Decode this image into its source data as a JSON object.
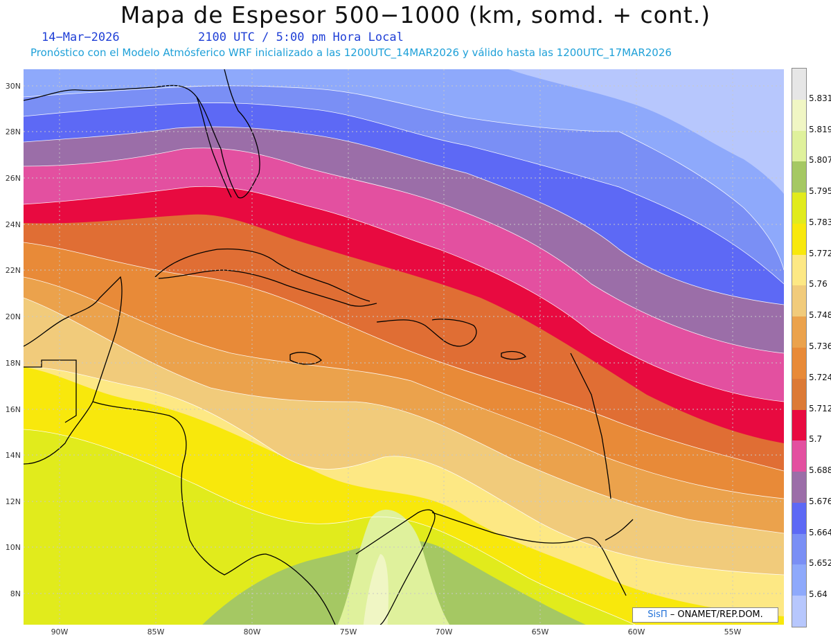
{
  "header": {
    "title": "Mapa de Espesor 500−1000 (km, somd. + cont.)",
    "date": "14−Mar−2026",
    "time": "2100 UTC / 5:00 pm Hora Local",
    "subtitle": "Pronóstico con el Modelo Atmósferico WRF inicializado a las 1200UTC_14MAR2026 y válido hasta las  1200UTC_17MAR2026"
  },
  "axes": {
    "lat_labels": [
      "30N",
      "28N",
      "26N",
      "24N",
      "22N",
      "20N",
      "18N",
      "16N",
      "14N",
      "12N",
      "10N",
      "8N"
    ],
    "lon_labels": [
      "90W",
      "85W",
      "80W",
      "75W",
      "70W",
      "65W",
      "60W",
      "55W"
    ]
  },
  "legend": {
    "labels": [
      "5.831",
      "5.819",
      "5.807",
      "5.795",
      "5.783",
      "5.772",
      "5.76",
      "5.748",
      "5.736",
      "5.724",
      "5.712",
      "5.7",
      "5.688",
      "5.676",
      "5.664",
      "5.652",
      "5.64"
    ],
    "colors": [
      "#e6e6e6",
      "#f0f6c4",
      "#dff19c",
      "#a5c863",
      "#e1eb1c",
      "#f8e80c",
      "#fde884",
      "#f1cb7b",
      "#eba24c",
      "#e88a38",
      "#dc7a36",
      "#e80a40",
      "#e350a0",
      "#9b6ea8",
      "#5d69f5",
      "#7a8ff5",
      "#8ea9fb",
      "#b7c7fd"
    ]
  },
  "credit": {
    "brand": "SisΠ",
    "text": "– ONAMET/REP.DOM."
  }
}
